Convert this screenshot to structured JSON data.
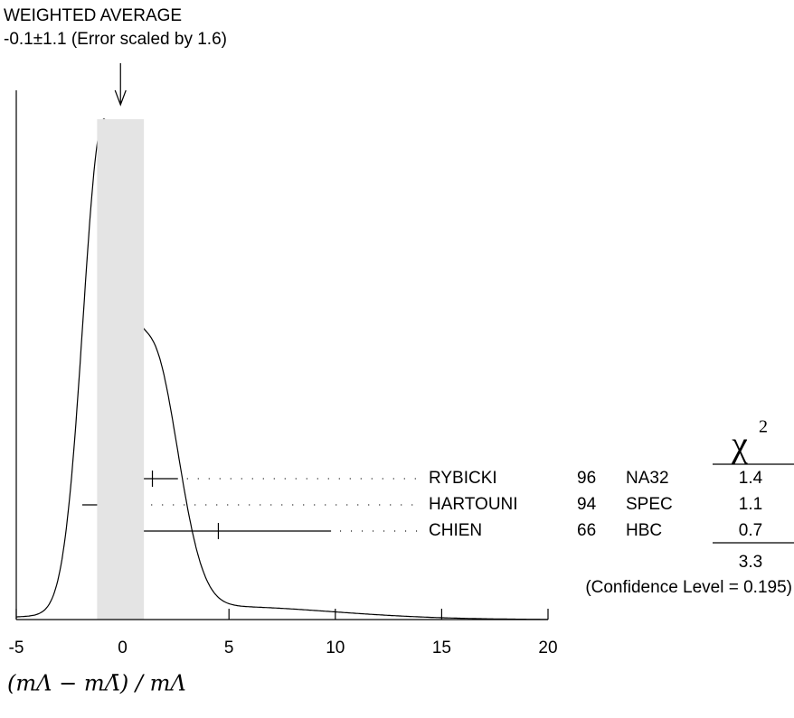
{
  "chart_data": {
    "type": "ideogram",
    "title": "WEIGHTED AVERAGE",
    "subtitle": "-0.1±1.1 (Error scaled by 1.6)",
    "weighted_average": -0.1,
    "weighted_error": 1.1,
    "xlim": [
      -5,
      20
    ],
    "xticks": [
      -5,
      0,
      5,
      10,
      15,
      20
    ],
    "x_label": "(mΛ − mΛ̄) / mΛ",
    "chi2_symbol": "χ",
    "chi2_exponent": "2",
    "measurements": [
      {
        "name": "RYBICKI",
        "year": 96,
        "experiment": "NA32",
        "value": 1.4,
        "error": 1.2,
        "chi2": 1.4
      },
      {
        "name": "HARTOUNI",
        "year": 94,
        "experiment": "SPEC",
        "value": -1.0,
        "error": 0.9,
        "chi2": 1.1
      },
      {
        "name": "CHIEN",
        "year": 66,
        "experiment": "HBC",
        "value": 4.5,
        "error": 5.3,
        "chi2": 0.7
      }
    ],
    "chi2_total": 3.3,
    "confidence_level": "(Confidence Level = 0.195)"
  }
}
